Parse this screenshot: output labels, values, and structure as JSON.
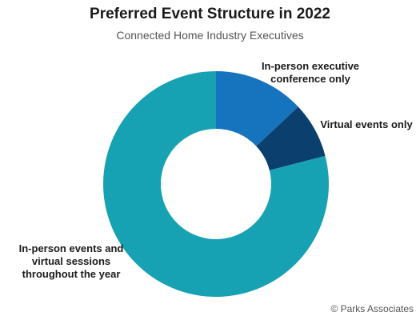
{
  "title": "Preferred Event Structure in 2022",
  "subtitle": "Connected Home Industry Executives",
  "credit": "© Parks Associates",
  "chart_data": {
    "type": "pie",
    "variant": "donut",
    "start_angle_deg": 0,
    "direction": "clockwise",
    "slices": [
      {
        "label": "In-person executive conference only",
        "label_lines": [
          "In-person executive",
          "conference only"
        ],
        "value": 13,
        "color": "#1574bd"
      },
      {
        "label": "Virtual events only",
        "label_lines": [
          "Virtual events only"
        ],
        "value": 8,
        "color": "#0b3f6e"
      },
      {
        "label": "In-person events and virtual sessions throughout the year",
        "label_lines": [
          "In-person events and",
          "virtual sessions",
          "throughout the year"
        ],
        "value": 79,
        "color": "#17a2b4"
      }
    ],
    "legend": "none"
  }
}
